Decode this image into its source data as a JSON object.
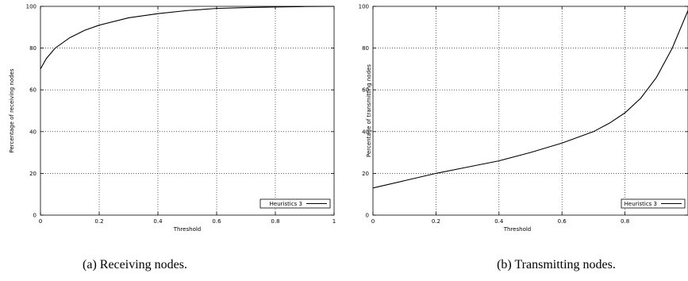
{
  "chart_data": [
    {
      "type": "line",
      "caption": "(a) Receiving nodes.",
      "xlabel": "Threshold",
      "ylabel": "Percentage of receiving nodes",
      "xlim": [
        0,
        1
      ],
      "ylim": [
        0,
        100
      ],
      "xticks": [
        "0",
        "0.2",
        "0.4",
        "0.6",
        "0.8",
        "1"
      ],
      "yticks": [
        "0",
        "20",
        "40",
        "60",
        "80",
        "100"
      ],
      "grid": true,
      "legend_position": "bottom-right",
      "series": [
        {
          "name": "Heuristics 3",
          "x": [
            0,
            0.02,
            0.05,
            0.1,
            0.15,
            0.2,
            0.3,
            0.4,
            0.5,
            0.6,
            0.7,
            0.8,
            0.9,
            1.0
          ],
          "y": [
            70,
            75,
            80,
            85,
            88.5,
            91,
            94.5,
            96.5,
            98,
            99,
            99.4,
            99.7,
            99.9,
            100
          ]
        }
      ]
    },
    {
      "type": "line",
      "caption": "(b) Transmitting nodes.",
      "xlabel": "Threshold",
      "ylabel": "Percentage of transmitting nodes",
      "xlim": [
        0,
        1
      ],
      "ylim": [
        0,
        100
      ],
      "xticks": [
        "0",
        "0.2",
        "0.4",
        "0.6",
        "0.8"
      ],
      "yticks": [
        "0",
        "20",
        "40",
        "60",
        "80",
        "100"
      ],
      "grid": true,
      "legend_position": "bottom-right",
      "series": [
        {
          "name": "Heuristics 3",
          "x": [
            0,
            0.1,
            0.2,
            0.3,
            0.4,
            0.5,
            0.6,
            0.7,
            0.75,
            0.8,
            0.85,
            0.9,
            0.95,
            1.0
          ],
          "y": [
            13,
            16.5,
            20,
            23,
            26,
            30,
            34.5,
            40,
            44,
            49,
            56,
            66,
            80,
            98
          ]
        }
      ]
    }
  ]
}
